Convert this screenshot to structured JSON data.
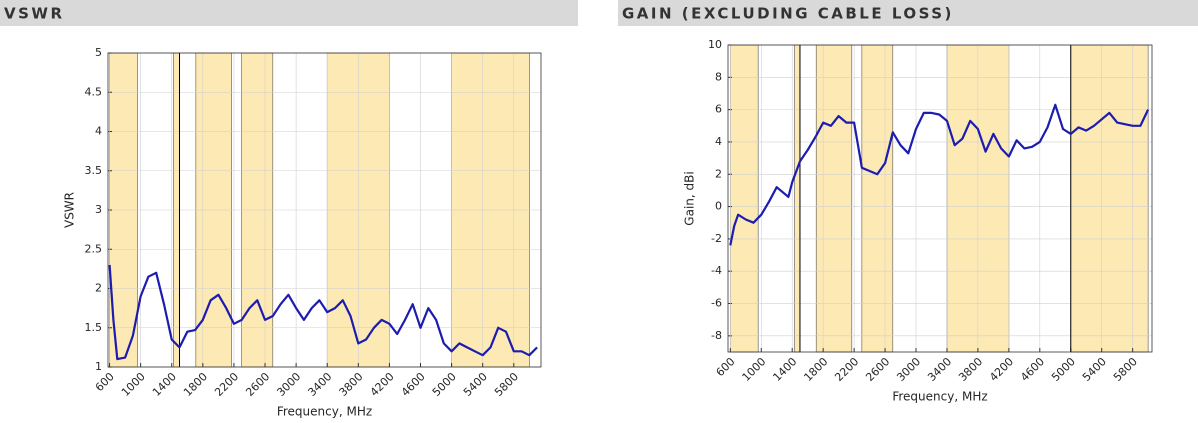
{
  "chart_data": [
    {
      "type": "line",
      "title": "VSWR",
      "ylabel": "VSWR",
      "xlabel": "Frequency, MHz",
      "color": "#1c1cb0",
      "band_color": "#fde9b4",
      "grid": true,
      "xlim": [
        580,
        6150
      ],
      "ylim": [
        1,
        5
      ],
      "xticks": [
        600,
        1000,
        1400,
        1800,
        2200,
        2600,
        3000,
        3400,
        3800,
        4200,
        4600,
        5000,
        5400,
        5800
      ],
      "yticks": [
        1,
        1.5,
        2,
        2.5,
        3,
        3.5,
        4,
        4.5,
        5
      ],
      "bands": [
        [
          600,
          960
        ],
        [
          1420,
          1500
        ],
        [
          1710,
          2170
        ],
        [
          2300,
          2700
        ],
        [
          3400,
          4200
        ],
        [
          5000,
          6000
        ]
      ],
      "vlines": [
        1500
      ],
      "x": [
        600,
        650,
        700,
        800,
        900,
        1000,
        1100,
        1200,
        1300,
        1400,
        1500,
        1600,
        1700,
        1800,
        1900,
        2000,
        2100,
        2200,
        2300,
        2400,
        2500,
        2600,
        2700,
        2800,
        2900,
        3000,
        3100,
        3200,
        3300,
        3400,
        3500,
        3600,
        3700,
        3800,
        3900,
        4000,
        4100,
        4200,
        4300,
        4400,
        4500,
        4600,
        4700,
        4800,
        4900,
        5000,
        5100,
        5200,
        5300,
        5400,
        5500,
        5600,
        5700,
        5800,
        5900,
        6000,
        6100
      ],
      "values": [
        2.3,
        1.6,
        1.1,
        1.12,
        1.4,
        1.9,
        2.15,
        2.2,
        1.8,
        1.35,
        1.25,
        1.45,
        1.47,
        1.6,
        1.85,
        1.92,
        1.75,
        1.55,
        1.6,
        1.75,
        1.85,
        1.6,
        1.65,
        1.8,
        1.92,
        1.75,
        1.6,
        1.75,
        1.85,
        1.7,
        1.75,
        1.85,
        1.65,
        1.3,
        1.35,
        1.5,
        1.6,
        1.55,
        1.42,
        1.6,
        1.8,
        1.5,
        1.75,
        1.6,
        1.3,
        1.2,
        1.3,
        1.25,
        1.2,
        1.15,
        1.25,
        1.5,
        1.45,
        1.2,
        1.2,
        1.15,
        1.25
      ]
    },
    {
      "type": "line",
      "title": "GAIN (EXCLUDING CABLE LOSS)",
      "ylabel": "Gain, dBi",
      "xlabel": "Frequency, MHz",
      "color": "#1c1cb0",
      "band_color": "#fde9b4",
      "grid": true,
      "xlim": [
        570,
        6050
      ],
      "ylim": [
        -9,
        10
      ],
      "xticks": [
        600,
        1000,
        1400,
        1800,
        2200,
        2600,
        3000,
        3400,
        3800,
        4200,
        4600,
        5000,
        5400,
        5800
      ],
      "yticks": [
        -8,
        -6,
        -4,
        -2,
        0,
        2,
        4,
        6,
        8,
        10
      ],
      "bands": [
        [
          600,
          960
        ],
        [
          1430,
          1500
        ],
        [
          1710,
          2170
        ],
        [
          2300,
          2700
        ],
        [
          3400,
          4200
        ],
        [
          5000,
          6000
        ]
      ],
      "vlines": [
        1500,
        5000
      ],
      "x": [
        600,
        650,
        700,
        800,
        900,
        1000,
        1100,
        1200,
        1300,
        1350,
        1400,
        1500,
        1600,
        1700,
        1800,
        1900,
        2000,
        2100,
        2200,
        2300,
        2400,
        2500,
        2600,
        2700,
        2800,
        2900,
        3000,
        3100,
        3200,
        3300,
        3400,
        3500,
        3600,
        3700,
        3800,
        3900,
        4000,
        4100,
        4200,
        4300,
        4400,
        4500,
        4600,
        4700,
        4800,
        4900,
        5000,
        5100,
        5200,
        5300,
        5400,
        5500,
        5600,
        5700,
        5800,
        5900,
        6000
      ],
      "values": [
        -2.4,
        -1.2,
        -0.5,
        -0.8,
        -1.0,
        -0.5,
        0.3,
        1.2,
        0.8,
        0.6,
        1.5,
        2.8,
        3.5,
        4.3,
        5.2,
        5.0,
        5.6,
        5.2,
        5.2,
        2.4,
        2.2,
        2.0,
        2.7,
        4.6,
        3.8,
        3.3,
        4.8,
        5.8,
        5.8,
        5.7,
        5.3,
        3.8,
        4.2,
        5.3,
        4.8,
        3.4,
        4.5,
        3.6,
        3.1,
        4.1,
        3.6,
        3.7,
        4.0,
        4.9,
        6.3,
        4.8,
        4.5,
        4.9,
        4.7,
        5.0,
        5.4,
        5.8,
        5.2,
        5.1,
        5.0,
        5.0,
        6.0
      ]
    }
  ]
}
